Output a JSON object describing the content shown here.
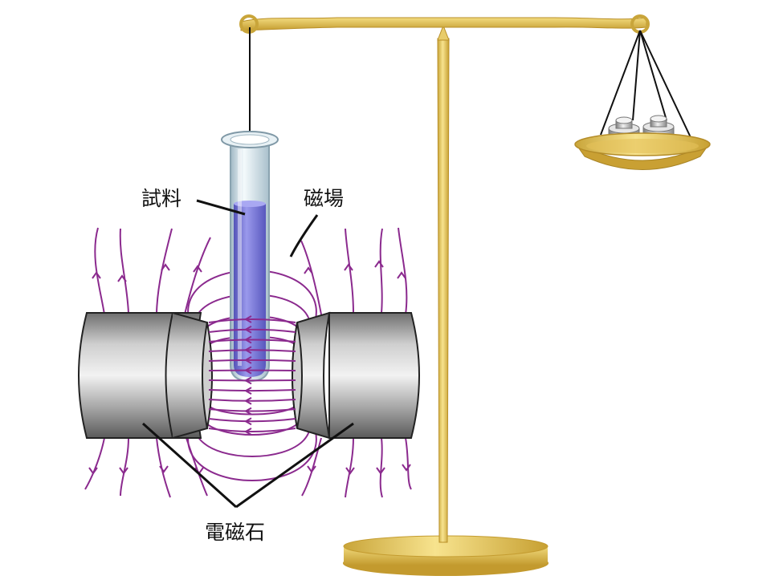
{
  "labels": {
    "sample": "試料",
    "magnetic_field": "磁場",
    "electromagnet": "電磁石"
  },
  "colors": {
    "field_lines": "#8b2a8e",
    "magnet_body": "#9a9a9a",
    "brass": "#e2c35a",
    "liquid": "#7b7ad8",
    "glass": "#d6e6ee"
  }
}
